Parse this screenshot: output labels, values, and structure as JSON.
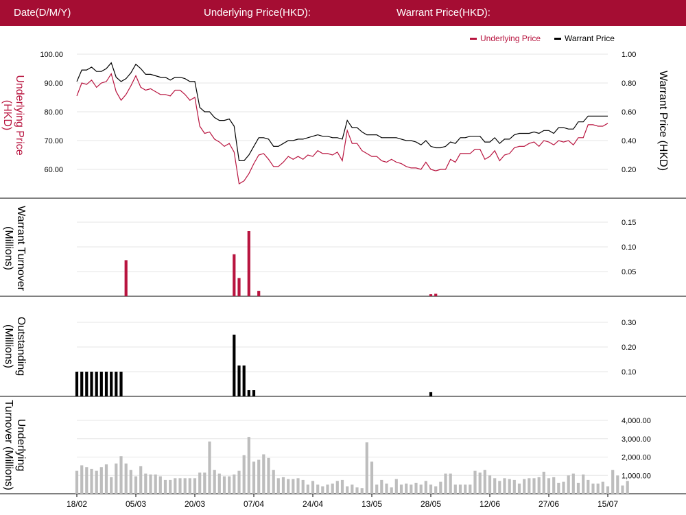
{
  "header": {
    "date_label": "Date(D/M/Y)",
    "underlying_label": "Underlying Price(HKD):",
    "warrant_label": "Warrant Price(HKD):"
  },
  "colors": {
    "header_bg": "#a50d33",
    "underlying": "#b8143f",
    "warrant": "#000000",
    "underlying_turnover": "#bdbdbd",
    "grid": "#e6e6e6"
  },
  "chart_data": [
    {
      "type": "line",
      "legend_position": "top-right",
      "legend": [
        "Underlying Price",
        "Warrant Price"
      ],
      "ylabel": "Underlying Price (HKD)",
      "ylabel_right": "Warrant  Price (HKD)",
      "y_ticks": [
        "100.00",
        "90.00",
        "80.00",
        "70.00",
        "60.00"
      ],
      "y2_ticks": [
        "1.00",
        "0.80",
        "0.60",
        "0.40",
        "0.20"
      ],
      "ylim": [
        52,
        100
      ],
      "y2lim": [
        0.04,
        1.0
      ],
      "series": [
        {
          "name": "Underlying Price",
          "axis": "left",
          "values": [
            85.5,
            90,
            89.5,
            91,
            88.5,
            90,
            90.5,
            93.2,
            87,
            84,
            86,
            89,
            92.5,
            88.5,
            87.5,
            88,
            87,
            86,
            86,
            85.5,
            87.5,
            87.5,
            86,
            84,
            85,
            75,
            72.5,
            73,
            70.5,
            69.5,
            68,
            69,
            66,
            55,
            56,
            58.5,
            62,
            65,
            65.5,
            63.5,
            61,
            61,
            62.5,
            64.5,
            63.5,
            64.5,
            63.5,
            65,
            64.5,
            66.5,
            65.5,
            65.5,
            65,
            66,
            63,
            73.5,
            69,
            69,
            66.5,
            65.5,
            64.5,
            64.5,
            63,
            62.5,
            63.5,
            62.5,
            62,
            61,
            60.5,
            60.5,
            60,
            62.5,
            60,
            59.5,
            60,
            60,
            63.5,
            62.5,
            65.5,
            65.5,
            65.5,
            67,
            67,
            63.5,
            64.5,
            66.5,
            63,
            65,
            65.5,
            67.5,
            68,
            68,
            69,
            69.5,
            68,
            70,
            69.5,
            68.5,
            70,
            69.5,
            70,
            68.5,
            71,
            71,
            75.5,
            75.5,
            75,
            75,
            76
          ]
        },
        {
          "name": "Warrant Price",
          "axis": "right",
          "values": [
            0.81,
            0.89,
            0.89,
            0.91,
            0.88,
            0.88,
            0.9,
            0.94,
            0.84,
            0.81,
            0.83,
            0.87,
            0.93,
            0.9,
            0.86,
            0.86,
            0.85,
            0.84,
            0.84,
            0.82,
            0.84,
            0.84,
            0.83,
            0.81,
            0.81,
            0.63,
            0.6,
            0.6,
            0.56,
            0.54,
            0.54,
            0.55,
            0.5,
            0.26,
            0.26,
            0.3,
            0.36,
            0.42,
            0.42,
            0.41,
            0.36,
            0.36,
            0.38,
            0.4,
            0.4,
            0.41,
            0.41,
            0.42,
            0.43,
            0.44,
            0.43,
            0.43,
            0.42,
            0.42,
            0.41,
            0.54,
            0.49,
            0.49,
            0.46,
            0.44,
            0.44,
            0.44,
            0.42,
            0.42,
            0.42,
            0.42,
            0.41,
            0.4,
            0.4,
            0.39,
            0.37,
            0.4,
            0.36,
            0.35,
            0.35,
            0.36,
            0.39,
            0.38,
            0.42,
            0.42,
            0.43,
            0.43,
            0.43,
            0.39,
            0.39,
            0.42,
            0.38,
            0.41,
            0.41,
            0.44,
            0.45,
            0.45,
            0.45,
            0.46,
            0.45,
            0.47,
            0.47,
            0.45,
            0.49,
            0.49,
            0.48,
            0.48,
            0.53,
            0.53,
            0.57,
            0.57,
            0.57,
            0.57,
            0.57
          ]
        }
      ]
    },
    {
      "type": "bar",
      "ylabel": "Warrant  Turnover (Millions)",
      "y_ticks": [
        "0.15",
        "0.10",
        "0.05"
      ],
      "ylim": [
        0,
        0.15
      ],
      "series": [
        {
          "values": [
            [
              10,
              0.073
            ],
            [
              32,
              0.085
            ],
            [
              33,
              0.037
            ],
            [
              35,
              0.132
            ],
            [
              37,
              0.011
            ],
            [
              72,
              0.004
            ],
            [
              73,
              0.005
            ]
          ]
        }
      ]
    },
    {
      "type": "bar",
      "ylabel": "Outstanding (Millions)",
      "y_ticks": [
        "0.30",
        "0.20",
        "0.10"
      ],
      "ylim": [
        0,
        0.3
      ],
      "series": [
        {
          "values": [
            [
              0,
              0.1
            ],
            [
              1,
              0.1
            ],
            [
              2,
              0.1
            ],
            [
              3,
              0.1
            ],
            [
              4,
              0.1
            ],
            [
              5,
              0.1
            ],
            [
              6,
              0.1
            ],
            [
              7,
              0.1
            ],
            [
              8,
              0.1
            ],
            [
              9,
              0.1
            ],
            [
              32,
              0.25
            ],
            [
              33,
              0.125
            ],
            [
              34,
              0.125
            ],
            [
              35,
              0.025
            ],
            [
              36,
              0.025
            ],
            [
              72,
              0.017
            ]
          ]
        }
      ]
    },
    {
      "type": "bar",
      "ylabel": "Underlying Turnover (Millions)",
      "y_ticks": [
        "4,000.00",
        "3,000.00",
        "2,000.00",
        "1,000.00"
      ],
      "ylim": [
        0,
        4000
      ],
      "series": [
        {
          "values": [
            1250,
            1550,
            1450,
            1350,
            1250,
            1450,
            1600,
            900,
            1650,
            2050,
            1650,
            1300,
            950,
            1500,
            1100,
            1050,
            1050,
            950,
            750,
            750,
            850,
            850,
            850,
            850,
            850,
            1150,
            1150,
            2850,
            1300,
            1100,
            950,
            950,
            1050,
            1250,
            2100,
            3100,
            1750,
            1850,
            2150,
            1950,
            1300,
            850,
            900,
            800,
            800,
            850,
            750,
            500,
            700,
            500,
            400,
            500,
            550,
            700,
            750,
            400,
            500,
            350,
            300,
            2800,
            1750,
            500,
            750,
            550,
            350,
            800,
            500,
            550,
            500,
            600,
            500,
            700,
            500,
            400,
            650,
            1100,
            1100,
            500,
            500,
            500,
            500,
            1250,
            1150,
            1300,
            1000,
            850,
            700,
            850,
            800,
            750,
            550,
            800,
            850,
            850,
            900,
            1200,
            850,
            900,
            600,
            650,
            1000,
            1100,
            600,
            1050,
            750,
            550,
            550,
            650,
            400,
            1300,
            1000,
            450,
            700
          ]
        }
      ]
    }
  ],
  "x_axis": {
    "ticks": [
      "18/02",
      "05/03",
      "20/03",
      "07/04",
      "24/04",
      "13/05",
      "28/05",
      "12/06",
      "27/06",
      "15/07"
    ]
  }
}
